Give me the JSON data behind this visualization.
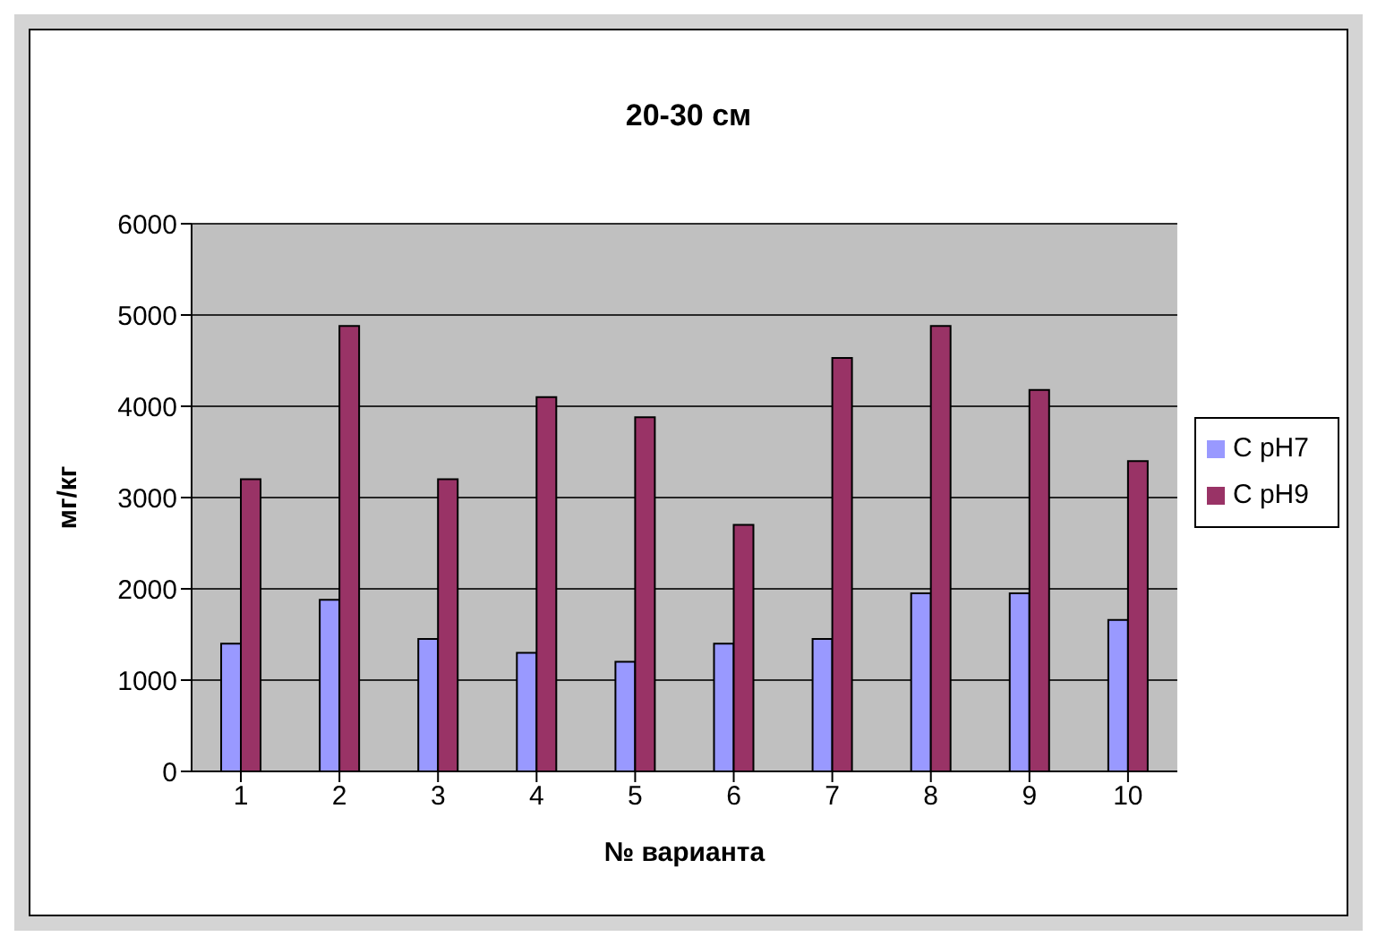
{
  "chart_data": {
    "type": "bar",
    "title": "20-30 см",
    "xlabel": "№ варианта",
    "ylabel": "мг/кг",
    "categories": [
      "1",
      "2",
      "3",
      "4",
      "5",
      "6",
      "7",
      "8",
      "9",
      "10"
    ],
    "series": [
      {
        "name": "C pH7",
        "color": "#9999ff",
        "values": [
          1400,
          1880,
          1450,
          1300,
          1200,
          1400,
          1450,
          1950,
          1950,
          1660
        ]
      },
      {
        "name": "C pH9",
        "color": "#993366",
        "values": [
          3200,
          4880,
          3200,
          4100,
          3880,
          2700,
          4530,
          4880,
          4180,
          3400
        ]
      }
    ],
    "ylim": [
      0,
      6000
    ],
    "yticks": [
      0,
      1000,
      2000,
      3000,
      4000,
      5000,
      6000
    ],
    "grid": "y",
    "legend": "right"
  }
}
